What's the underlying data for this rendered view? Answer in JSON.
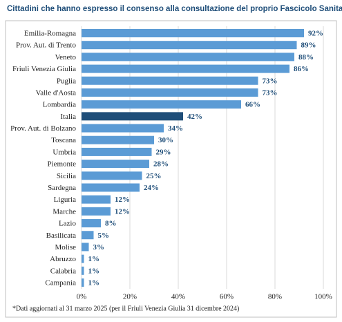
{
  "chart_data": {
    "type": "bar",
    "orientation": "horizontal",
    "title": "Cittadini che hanno espresso il consenso alla consultazione del proprio Fascicolo Sanitario Elettronico",
    "categories": [
      "Emilia-Romagna",
      "Prov. Aut. di Trento",
      "Veneto",
      "Friuli Venezia Giulia",
      "Puglia",
      "Valle d'Aosta",
      "Lombardia",
      "Italia",
      "Prov. Aut. di Bolzano",
      "Toscana",
      "Umbria",
      "Piemonte",
      "Sicilia",
      "Sardegna",
      "Liguria",
      "Marche",
      "Lazio",
      "Basilicata",
      "Molise",
      "Abruzzo",
      "Calabria",
      "Campania"
    ],
    "values": [
      92,
      89,
      88,
      86,
      73,
      73,
      66,
      42,
      34,
      30,
      29,
      28,
      25,
      24,
      12,
      12,
      8,
      5,
      3,
      1,
      1,
      1
    ],
    "value_labels": [
      "92%",
      "89%",
      "88%",
      "86%",
      "73%",
      "73%",
      "66%",
      "42%",
      "34%",
      "30%",
      "29%",
      "28%",
      "25%",
      "24%",
      "12%",
      "12%",
      "8%",
      "5%",
      "3%",
      "1%",
      "1%",
      "1%"
    ],
    "colors": [
      "#5b9bd5",
      "#5b9bd5",
      "#5b9bd5",
      "#5b9bd5",
      "#5b9bd5",
      "#5b9bd5",
      "#5b9bd5",
      "#1f4e79",
      "#5b9bd5",
      "#5b9bd5",
      "#5b9bd5",
      "#5b9bd5",
      "#5b9bd5",
      "#5b9bd5",
      "#5b9bd5",
      "#5b9bd5",
      "#5b9bd5",
      "#5b9bd5",
      "#5b9bd5",
      "#5b9bd5",
      "#5b9bd5",
      "#5b9bd5"
    ],
    "xlim": [
      0,
      100
    ],
    "xticks": [
      {
        "value": 0,
        "label": "0%"
      },
      {
        "value": 20,
        "label": "20%"
      },
      {
        "value": 40,
        "label": "40%"
      },
      {
        "value": 60,
        "label": "60%"
      },
      {
        "value": 80,
        "label": "80%"
      },
      {
        "value": 100,
        "label": "100%"
      }
    ],
    "grid": true,
    "footnote": "*Dati aggiornati al 31 marzo 2025 (per il Friuli Venezia Giulia 31 dicembre 2024)"
  }
}
